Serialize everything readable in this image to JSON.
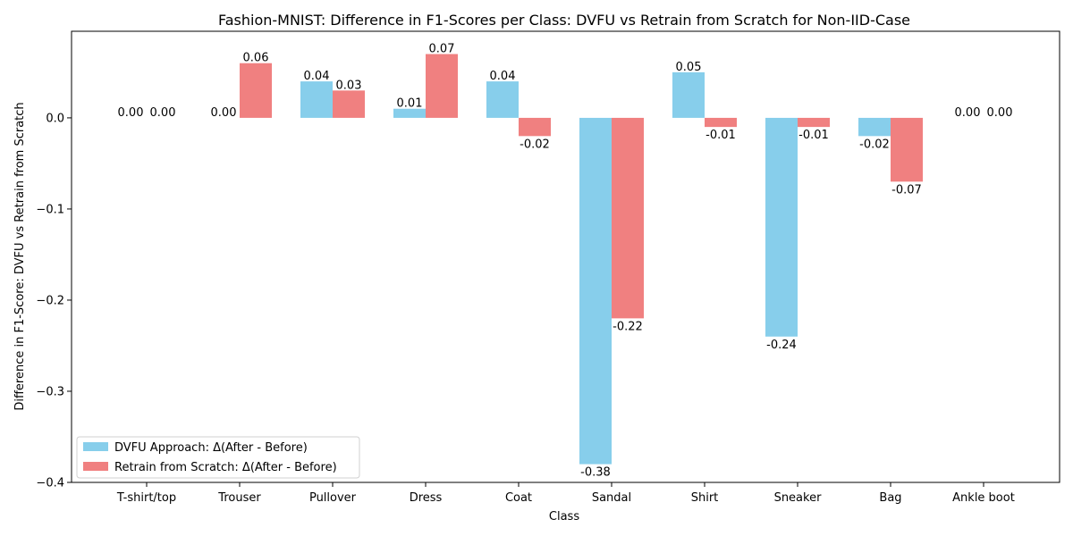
{
  "chart_data": {
    "type": "bar",
    "title": "Fashion-MNIST: Difference in F1-Scores per Class: DVFU vs Retrain from Scratch for Non-IID-Case",
    "xlabel": "Class",
    "ylabel": "Difference in F1-Score: DVFU vs Retrain from Scratch",
    "categories": [
      "T-shirt/top",
      "Trouser",
      "Pullover",
      "Dress",
      "Coat",
      "Sandal",
      "Shirt",
      "Sneaker",
      "Bag",
      "Ankle boot"
    ],
    "series": [
      {
        "name": "DVFU Approach: Δ(After - Before)",
        "color": "#87CEEB",
        "values": [
          0.0,
          0.0,
          0.04,
          0.01,
          0.04,
          -0.38,
          0.05,
          -0.24,
          -0.02,
          0.0
        ],
        "labels": [
          "0.00",
          "0.00",
          "0.04",
          "0.01",
          "0.04",
          "-0.38",
          "0.05",
          "-0.24",
          "-0.02",
          "0.00"
        ]
      },
      {
        "name": "Retrain from Scratch: Δ(After - Before)",
        "color": "#F08080",
        "values": [
          0.0,
          0.06,
          0.03,
          0.07,
          -0.02,
          -0.22,
          -0.01,
          -0.01,
          -0.07,
          0.0
        ],
        "labels": [
          "0.00",
          "0.06",
          "0.03",
          "0.07",
          "-0.02",
          "-0.22",
          "-0.01",
          "-0.01",
          "-0.07",
          "0.00"
        ]
      }
    ],
    "ylim": [
      -0.4,
      0.095
    ],
    "yticks": [
      -0.4,
      -0.3,
      -0.2,
      -0.1,
      0.0
    ],
    "ytick_labels": [
      "−0.4",
      "−0.3",
      "−0.2",
      "−0.1",
      "0.0"
    ],
    "grid": false,
    "legend_position": "lower-left"
  }
}
